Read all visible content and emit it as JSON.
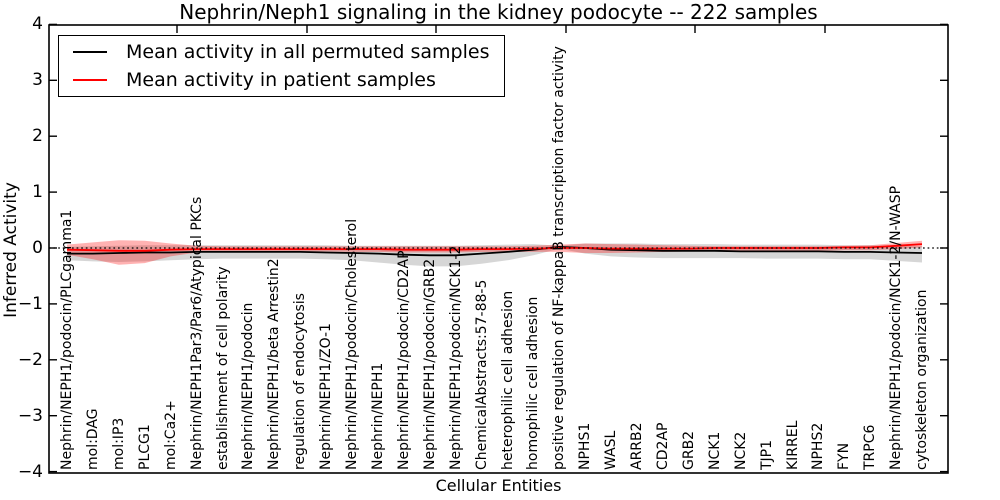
{
  "figure": {
    "title": "Nephrin/Neph1 signaling in the kidney podocyte -- 222 samples",
    "xlabel": "Cellular Entities",
    "ylabel": "Inferred Activity"
  },
  "legend": {
    "items": [
      {
        "label": "Mean activity in all permuted samples",
        "color": "#000000"
      },
      {
        "label": "Mean activity in patient samples",
        "color": "#ff0000"
      }
    ]
  },
  "chart_data": {
    "type": "line",
    "title": "Nephrin/Neph1 signaling in the kidney podocyte -- 222 samples",
    "xlabel": "Cellular Entities",
    "ylabel": "Inferred Activity",
    "ylim": [
      -4,
      4
    ],
    "yticks": [
      "4",
      "3",
      "2",
      "1",
      "0",
      "−1",
      "−2",
      "−3",
      "−4"
    ],
    "grid": false,
    "legend_position": "upper left",
    "zero_line": 0,
    "categories": [
      "Nephrin/NEPH1/podocin/PLCgamma1",
      "mol:DAG",
      "mol:IP3",
      "PLCG1",
      "mol:Ca2+",
      "Nephrin/NEPH1Par3/Par6/Atypical PKCs",
      "establishment of cell polarity",
      "Nephrin/NEPH1/podocin",
      "Nephrin/NEPH1/beta Arrestin2",
      "regulation of endocytosis",
      "Nephrin/NEPH1/ZO-1",
      "Nephrin/NEPH1/podocin/Cholesterol",
      "Nephrin/NEPH1",
      "Nephrin/NEPH1/podocin/CD2AP",
      "Nephrin/NEPH1/podocin/GRB2",
      "Nephrin/NEPH1/podocin/NCK1-2",
      "ChemicalAbstracts:57-88-5",
      "heterophilic cell adhesion",
      "homophilic cell adhesion",
      "positive regulation of NF-kappaB transcription factor activity",
      "NPHS1",
      "WASL",
      "ARRB2",
      "CD2AP",
      "GRB2",
      "NCK1",
      "NCK2",
      "TJP1",
      "KIRREL",
      "NPHS2",
      "FYN",
      "TRPC6",
      "Nephrin/NEPH1/podocin/NCK1-2/N-WASP",
      "cytoskeleton organization"
    ],
    "series": [
      {
        "name": "Mean activity in all permuted samples",
        "color": "#000000",
        "band_color": "rgba(0,0,0,0.16)",
        "values": [
          -0.1,
          -0.1,
          -0.09,
          -0.08,
          -0.08,
          -0.07,
          -0.07,
          -0.07,
          -0.07,
          -0.07,
          -0.08,
          -0.09,
          -0.1,
          -0.12,
          -0.13,
          -0.13,
          -0.1,
          -0.07,
          -0.03,
          0.02,
          0.0,
          -0.03,
          -0.04,
          -0.05,
          -0.05,
          -0.05,
          -0.06,
          -0.06,
          -0.06,
          -0.06,
          -0.07,
          -0.07,
          -0.08,
          -0.09
        ],
        "band_upper": [
          0.02,
          0.03,
          0.04,
          0.05,
          0.05,
          0.05,
          0.05,
          0.05,
          0.05,
          0.05,
          0.05,
          0.04,
          0.04,
          0.04,
          0.04,
          0.04,
          0.05,
          0.06,
          0.07,
          0.04,
          0.08,
          0.08,
          0.08,
          0.07,
          0.07,
          0.07,
          0.06,
          0.06,
          0.06,
          0.06,
          0.05,
          0.05,
          0.04,
          0.03
        ],
        "band_lower": [
          -0.22,
          -0.24,
          -0.25,
          -0.24,
          -0.22,
          -0.2,
          -0.19,
          -0.19,
          -0.19,
          -0.19,
          -0.2,
          -0.22,
          -0.26,
          -0.3,
          -0.33,
          -0.33,
          -0.28,
          -0.22,
          -0.13,
          -0.01,
          -0.1,
          -0.15,
          -0.17,
          -0.18,
          -0.18,
          -0.18,
          -0.18,
          -0.19,
          -0.19,
          -0.19,
          -0.2,
          -0.2,
          -0.23,
          -0.26
        ]
      },
      {
        "name": "Mean activity in patient samples",
        "color": "#ff0000",
        "band_color": "rgba(255,0,0,0.30)",
        "values": [
          -0.03,
          -0.04,
          -0.05,
          -0.05,
          -0.03,
          -0.02,
          -0.02,
          -0.02,
          -0.02,
          -0.02,
          -0.02,
          -0.02,
          -0.02,
          -0.03,
          -0.03,
          -0.03,
          -0.02,
          -0.02,
          -0.01,
          0.0,
          0.0,
          -0.01,
          -0.01,
          -0.01,
          -0.01,
          0.0,
          0.0,
          0.0,
          0.0,
          0.0,
          0.01,
          0.01,
          0.04,
          0.07
        ],
        "band_upper": [
          0.06,
          0.1,
          0.14,
          0.13,
          0.08,
          0.04,
          0.03,
          0.03,
          0.03,
          0.03,
          0.03,
          0.03,
          0.03,
          0.03,
          0.03,
          0.03,
          0.03,
          0.03,
          0.04,
          0.06,
          0.08,
          0.07,
          0.06,
          0.05,
          0.04,
          0.03,
          0.03,
          0.03,
          0.03,
          0.03,
          0.04,
          0.05,
          0.09,
          0.13
        ],
        "band_lower": [
          -0.12,
          -0.2,
          -0.3,
          -0.27,
          -0.15,
          -0.08,
          -0.07,
          -0.06,
          -0.06,
          -0.06,
          -0.06,
          -0.07,
          -0.07,
          -0.08,
          -0.08,
          -0.08,
          -0.07,
          -0.07,
          -0.07,
          -0.07,
          -0.09,
          -0.09,
          -0.08,
          -0.07,
          -0.06,
          -0.06,
          -0.05,
          -0.05,
          -0.05,
          -0.05,
          -0.04,
          -0.04,
          -0.02,
          0.01
        ]
      }
    ]
  }
}
